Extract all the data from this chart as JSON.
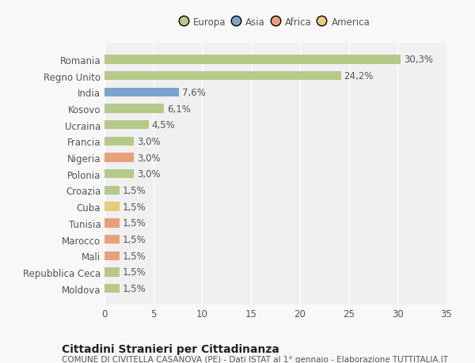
{
  "categories": [
    "Moldova",
    "Repubblica Ceca",
    "Mali",
    "Marocco",
    "Tunisia",
    "Cuba",
    "Croazia",
    "Polonia",
    "Nigeria",
    "Francia",
    "Ucraina",
    "Kosovo",
    "India",
    "Regno Unito",
    "Romania"
  ],
  "values": [
    1.5,
    1.5,
    1.5,
    1.5,
    1.5,
    1.5,
    1.5,
    3.0,
    3.0,
    3.0,
    4.5,
    6.1,
    7.6,
    24.2,
    30.3
  ],
  "labels": [
    "1,5%",
    "1,5%",
    "1,5%",
    "1,5%",
    "1,5%",
    "1,5%",
    "1,5%",
    "3,0%",
    "3,0%",
    "3,0%",
    "4,5%",
    "6,1%",
    "7,6%",
    "24,2%",
    "30,3%"
  ],
  "colors": [
    "#b5c98a",
    "#b5c98a",
    "#e8a07a",
    "#e8a07a",
    "#e8a07a",
    "#e8cc7a",
    "#b5c98a",
    "#b5c98a",
    "#e8a07a",
    "#b5c98a",
    "#b5c98a",
    "#b5c98a",
    "#7ba3cc",
    "#b5c98a",
    "#b5c98a"
  ],
  "legend_labels": [
    "Europa",
    "Asia",
    "Africa",
    "America"
  ],
  "legend_colors": [
    "#b5c98a",
    "#7ba3cc",
    "#e8a07a",
    "#e8cc7a"
  ],
  "title": "Cittadini Stranieri per Cittadinanza",
  "subtitle": "COMUNE DI CIVITELLA CASANOVA (PE) - Dati ISTAT al 1° gennaio - Elaborazione TUTTITALIA.IT",
  "xlim": [
    0,
    35
  ],
  "xticks": [
    0,
    5,
    10,
    15,
    20,
    25,
    30,
    35
  ],
  "bg_color": "#f8f8f8",
  "plot_bg": "#f0f0f0",
  "bar_height": 0.55,
  "grid_color": "#ffffff",
  "title_fontsize": 10,
  "subtitle_fontsize": 7.5,
  "label_fontsize": 8.5,
  "tick_fontsize": 8.5
}
